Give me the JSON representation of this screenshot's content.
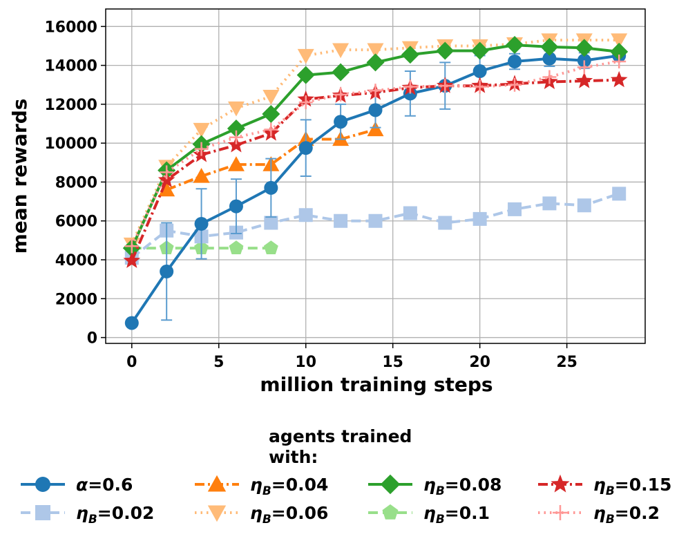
{
  "chart_data": {
    "type": "line",
    "title": "",
    "xlabel": "million training steps",
    "ylabel": "mean rewards",
    "xlim": [
      -1.5,
      29.5
    ],
    "ylim": [
      -300,
      16900
    ],
    "xticks": [
      0,
      5,
      10,
      15,
      20,
      25
    ],
    "xtick_labels": [
      "0",
      "5",
      "10",
      "15",
      "20",
      "25"
    ],
    "yticks": [
      0,
      2000,
      4000,
      6000,
      8000,
      10000,
      12000,
      14000,
      16000
    ],
    "ytick_labels": [
      "0",
      "2000",
      "4000",
      "6000",
      "8000",
      "10000",
      "12000",
      "14000",
      "16000"
    ],
    "grid": true,
    "legend": {
      "title_line1": "agents trained",
      "title_line2": "with:",
      "position": "bottom",
      "columns": 4
    },
    "series": [
      {
        "id": "eta004",
        "label_sym": "η",
        "label_sub": "B",
        "label_val": "=0.04",
        "color": "#ff7f0e",
        "marker": "triangle-up",
        "dash": "dashdot",
        "x": [
          2,
          4,
          6,
          8,
          10,
          12,
          14
        ],
        "y": [
          7600,
          8300,
          8900,
          8900,
          10200,
          10200,
          10700
        ]
      },
      {
        "id": "eta006",
        "label_sym": "η",
        "label_sub": "B",
        "label_val": "=0.06",
        "color": "#ffbb78",
        "marker": "triangle-down",
        "dash": "dotted",
        "x": [
          0,
          2,
          4,
          6,
          8,
          10,
          12,
          14,
          16,
          18,
          20,
          22,
          24,
          26,
          28
        ],
        "y": [
          4800,
          8800,
          10700,
          11800,
          12400,
          14500,
          14800,
          14800,
          14900,
          15000,
          15000,
          15100,
          15300,
          15300,
          15300
        ]
      },
      {
        "id": "eta01",
        "label_sym": "η",
        "label_sub": "B",
        "label_val": "=0.1",
        "color": "#98df8a",
        "marker": "pentagon",
        "dash": "dashed",
        "x": [
          0,
          2,
          4,
          6,
          8
        ],
        "y": [
          4600,
          4600,
          4600,
          4600,
          4600
        ]
      },
      {
        "id": "eta002",
        "label_sym": "η",
        "label_sub": "B",
        "label_val": "=0.02",
        "color": "#aec7e8",
        "marker": "square",
        "dash": "dashed",
        "x": [
          0,
          2,
          4,
          6,
          8,
          10,
          12,
          14,
          16,
          18,
          20,
          22,
          24,
          26,
          28
        ],
        "y": [
          4100,
          5500,
          5200,
          5400,
          5900,
          6300,
          6000,
          6000,
          6400,
          5900,
          6100,
          6600,
          6900,
          6800,
          7400
        ]
      },
      {
        "id": "alpha06",
        "label_sym": "α",
        "label_sub": "",
        "label_val": "=0.6",
        "color": "#1f77b4",
        "marker": "circle",
        "dash": "solid",
        "x": [
          0,
          2,
          4,
          6,
          8,
          10,
          12,
          14,
          16,
          18,
          20,
          22,
          24,
          26,
          28
        ],
        "y": [
          750,
          3400,
          5850,
          6750,
          7700,
          9750,
          11100,
          11700,
          12550,
          12950,
          13700,
          14200,
          14350,
          14250,
          14500
        ],
        "err": [
          0,
          2500,
          1800,
          1400,
          1500,
          1450,
          900,
          900,
          1150,
          1200,
          800,
          400,
          400,
          400,
          300
        ]
      },
      {
        "id": "eta008",
        "label_sym": "η",
        "label_sub": "B",
        "label_val": "=0.08",
        "color": "#2ca02c",
        "marker": "diamond",
        "dash": "solid",
        "x": [
          0,
          2,
          4,
          6,
          8,
          10,
          12,
          14,
          16,
          18,
          20,
          22,
          24,
          26,
          28
        ],
        "y": [
          4600,
          8600,
          9950,
          10750,
          11500,
          13500,
          13650,
          14150,
          14550,
          14750,
          14750,
          15050,
          14950,
          14900,
          14700
        ]
      },
      {
        "id": "eta015",
        "label_sym": "η",
        "label_sub": "B",
        "label_val": "=0.15",
        "color": "#d62728",
        "marker": "star",
        "dash": "dashdot",
        "x": [
          0,
          2,
          4,
          6,
          8,
          10,
          12,
          14,
          16,
          18,
          20,
          22,
          24,
          26,
          28
        ],
        "y": [
          3950,
          8100,
          9400,
          9900,
          10500,
          12250,
          12450,
          12600,
          12850,
          12950,
          12950,
          13050,
          13150,
          13200,
          13250
        ]
      },
      {
        "id": "eta02",
        "label_sym": "η",
        "label_sub": "B",
        "label_val": "=0.2",
        "color": "#ff9896",
        "marker": "plus",
        "dash": "dotted",
        "x": [
          0,
          2,
          4,
          6,
          8,
          10,
          12,
          14,
          16,
          18,
          20,
          22,
          24,
          26,
          28
        ],
        "y": [
          4700,
          8500,
          9700,
          10300,
          10700,
          12100,
          12500,
          12700,
          12900,
          12950,
          12900,
          13000,
          13400,
          13900,
          14200
        ]
      }
    ],
    "legend_order": [
      "alpha06",
      "eta004",
      "eta008",
      "eta015",
      "eta002",
      "eta006",
      "eta01",
      "eta02"
    ]
  }
}
